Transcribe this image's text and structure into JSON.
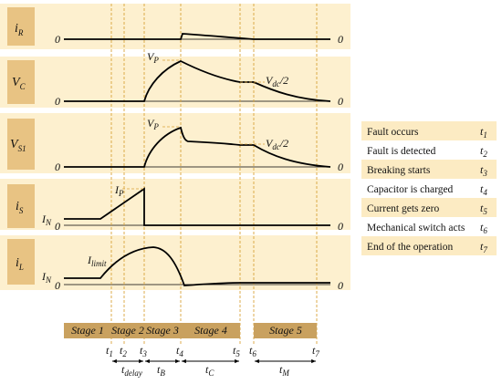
{
  "colors": {
    "band": "#fdf0cf",
    "label_box": "#e8c383",
    "stage_bar": "#c9a15f",
    "guide": "#d9a33a",
    "trace": "#000000",
    "legend_even": "#fcebc3",
    "legend_odd": "#ffffff"
  },
  "panels": {
    "iR": {
      "sym": "i",
      "sub": "R",
      "zero_left": "0",
      "zero_right": "0"
    },
    "VC": {
      "sym": "V",
      "sub": "C",
      "zero_left": "0",
      "zero_right": "0",
      "peak_sym": "V",
      "peak_sub": "P",
      "half_sym": "V",
      "half_sub": "dc",
      "half_suffix": "/2"
    },
    "VS1": {
      "sym": "V",
      "sub": "S1",
      "zero_left": "0",
      "zero_right": "0",
      "peak_sym": "V",
      "peak_sub": "P",
      "half_sym": "V",
      "half_sub": "dc",
      "half_suffix": "/2"
    },
    "iS": {
      "sym": "i",
      "sub": "S",
      "zero_left": "0",
      "zero_right": "0",
      "ip_sym": "I",
      "ip_sub": "P",
      "in_sym": "I",
      "in_sub": "N"
    },
    "iL": {
      "sym": "i",
      "sub": "L",
      "zero_left": "0",
      "zero_right": "0",
      "lim_sym": "I",
      "lim_sub": "limit",
      "in_sym": "I",
      "in_sub": "N"
    }
  },
  "stages": [
    "Stage 1",
    "Stage 2",
    "Stage 3",
    "Stage 4",
    "Stage 5"
  ],
  "time_marks": [
    {
      "sym": "t",
      "sub": "1"
    },
    {
      "sym": "t",
      "sub": "2"
    },
    {
      "sym": "t",
      "sub": "3"
    },
    {
      "sym": "t",
      "sub": "4"
    },
    {
      "sym": "t",
      "sub": "5"
    },
    {
      "sym": "t",
      "sub": "6"
    },
    {
      "sym": "t",
      "sub": "7"
    }
  ],
  "intervals": [
    {
      "sym": "t",
      "sub": "delay"
    },
    {
      "sym": "t",
      "sub": "B"
    },
    {
      "sym": "t",
      "sub": "C"
    },
    {
      "sym": "t",
      "sub": "M"
    }
  ],
  "legend": [
    {
      "event": "Fault occurs",
      "t_sym": "t",
      "t_sub": "1"
    },
    {
      "event": "Fault is detected",
      "t_sym": "t",
      "t_sub": "2"
    },
    {
      "event": "Breaking starts",
      "t_sym": "t",
      "t_sub": "3"
    },
    {
      "event": "Capacitor is charged",
      "t_sym": "t",
      "t_sub": "4"
    },
    {
      "event": "Current gets zero",
      "t_sym": "t",
      "t_sub": "5"
    },
    {
      "event": "Mechanical switch acts",
      "t_sym": "t",
      "t_sub": "6"
    },
    {
      "event": "End of the operation",
      "t_sym": "t",
      "t_sub": "7"
    }
  ]
}
